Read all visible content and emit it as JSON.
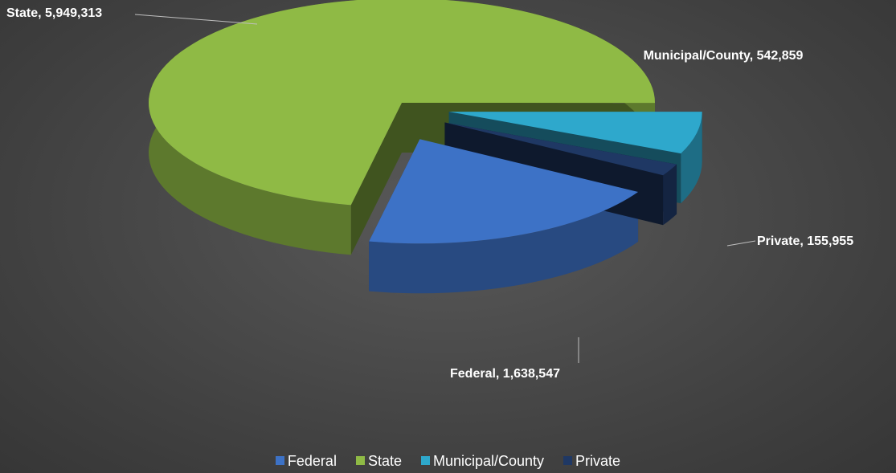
{
  "chart_data": {
    "type": "pie3d",
    "categories": [
      "Federal",
      "State",
      "Municipal/County",
      "Private"
    ],
    "values": [
      1638547,
      5949313,
      542859,
      155955
    ],
    "value_labels": [
      "Federal, 1,638,547",
      "State, 5,949,313",
      "Municipal/County, 542,859",
      "Private, 155,955"
    ],
    "colors": [
      "#3d72c6",
      "#8fba45",
      "#2ea8cc",
      "#1f3864"
    ],
    "legend": "bottom"
  }
}
